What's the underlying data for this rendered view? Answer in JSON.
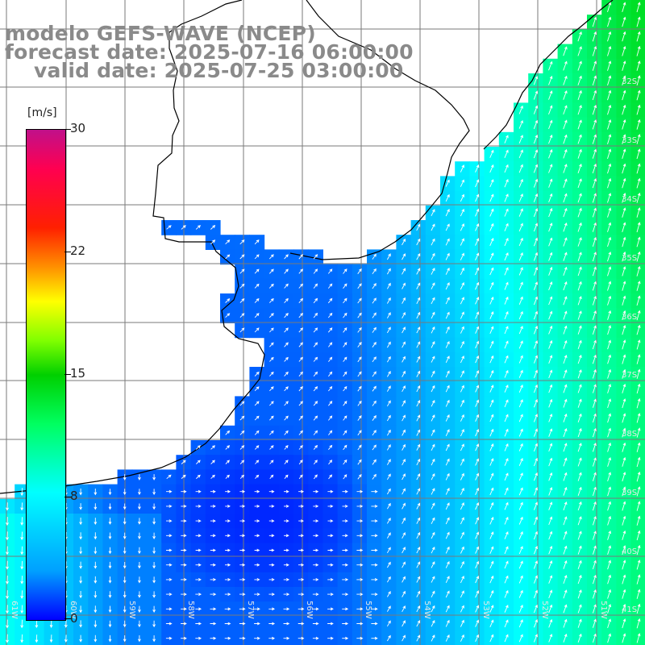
{
  "title": {
    "line1": "modelo GEFS-WAVE (NCEP)",
    "line2": "forecast date: 2025-07-16 06:00:00",
    "line3": "valid date: 2025-07-25 03:00:00"
  },
  "colorbar": {
    "unit": "[m/s]",
    "ticks": [
      "30",
      "22",
      "15",
      "8",
      "0"
    ],
    "tick_values": [
      30,
      22,
      15,
      8,
      0
    ],
    "min": 0,
    "max": 30,
    "colors": [
      "#0000ff",
      "#00a0ff",
      "#00ffff",
      "#00ff60",
      "#00d000",
      "#80ff00",
      "#ffff00",
      "#ff9000",
      "#ff2000",
      "#ff0050",
      "#c0108a"
    ]
  },
  "map": {
    "lat_labels": [
      "32S",
      "33S",
      "34S",
      "35S",
      "36S",
      "37S",
      "38S",
      "39S",
      "40S",
      "41S"
    ],
    "lon_labels": [
      "61W",
      "60W",
      "59W",
      "58W",
      "57W",
      "56W",
      "55W",
      "54W",
      "53W",
      "52W",
      "51W"
    ],
    "land_color": "#ffffff",
    "grid_color": "#7a7a7a",
    "coast_color": "#000000",
    "vector_color": "#ffffff"
  }
}
